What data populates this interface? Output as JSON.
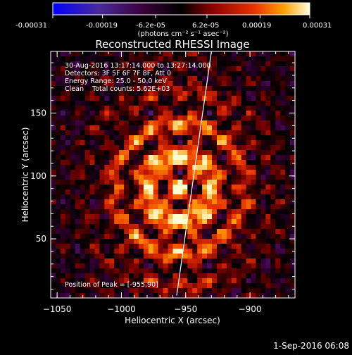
{
  "colorbar": {
    "tick_labels": [
      "-0.00031",
      "-0.00019",
      "-6.2e-05",
      "6.2e-05",
      "0.00019",
      "0.00031"
    ],
    "tick_values": [
      -0.00031,
      -0.00019,
      -6.2e-05,
      6.2e-05,
      0.00019,
      0.00031
    ],
    "range": [
      -0.00031,
      0.00031
    ],
    "units": "(photons cm⁻² s⁻¹ asec⁻²)"
  },
  "chart_data": {
    "type": "heatmap",
    "title": "Reconstructed RHESSI Image",
    "xlabel": "Heliocentric X (arcsec)",
    "ylabel": "Heliocentric Y (arcsec)",
    "xlim": [
      -1055,
      -865
    ],
    "ylim": [
      3,
      199
    ],
    "x_tick_values": [
      -1050,
      -1000,
      -950,
      -900
    ],
    "x_tick_labels": [
      "−1050",
      "−1000",
      "−950",
      "−900"
    ],
    "y_tick_values": [
      50,
      100,
      150
    ],
    "y_tick_labels": [
      "50",
      "100",
      "150"
    ],
    "peak": {
      "x": -955,
      "y": 90
    },
    "limb_line": [
      [
        -957,
        5
      ],
      [
        -930,
        199
      ]
    ],
    "annotations": [
      "30-Aug-2016 13:17:14.000 to 13:27:14.000",
      "Detectors: 3F 5F 6F 7F 8F, Att 0",
      "Energy Range: 25.0 - 50.0 keV",
      "Clean    Total counts: 5.62E+03",
      "Position of Peak = [-955,90]"
    ],
    "colormap": [
      "#0000ff",
      "#5a2a9a",
      "#3a003a",
      "#000000",
      "#7a0000",
      "#e83000",
      "#ff9a00",
      "#ffffd0"
    ]
  },
  "footer": {
    "timestamp": "1-Sep-2016 06:08"
  }
}
